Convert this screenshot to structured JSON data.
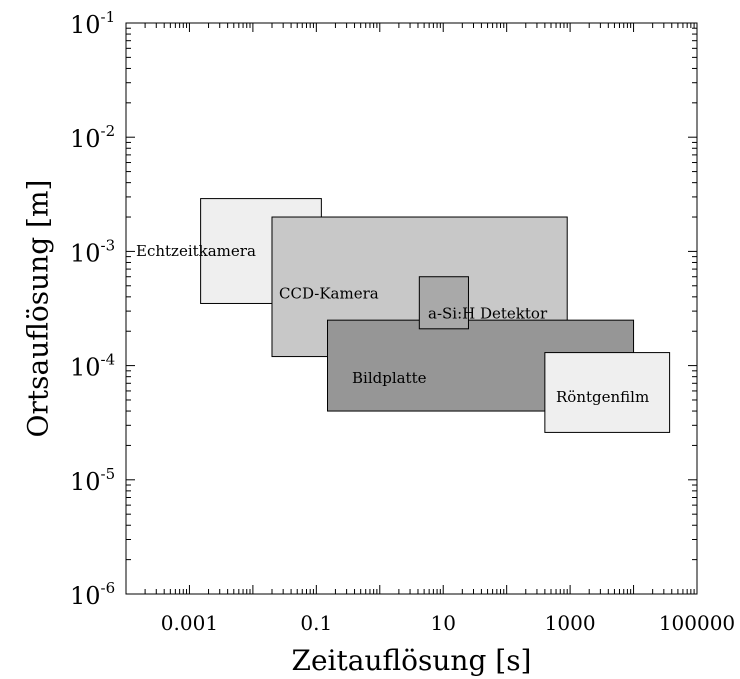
{
  "chart_data": {
    "type": "area",
    "xlabel": "Zeitauflösung [s]",
    "ylabel": "Ortsauflösung [m]",
    "x_scale": "log",
    "y_scale": "log",
    "xlim": [
      0.0001,
      100000
    ],
    "ylim": [
      1e-06,
      0.1
    ],
    "grid": false,
    "x_tick_labels": [
      "0.001",
      "0.1",
      "10",
      "1000",
      "100000"
    ],
    "x_tick_values": [
      0.001,
      0.1,
      10,
      1000,
      100000
    ],
    "y_tick_bases": [
      "10",
      "10",
      "10",
      "10",
      "10",
      "10"
    ],
    "y_tick_exps": [
      "-6",
      "-5",
      "-4",
      "-3",
      "-2",
      "-1"
    ],
    "y_tick_values": [
      1e-06,
      1e-05,
      0.0001,
      0.001,
      0.01,
      0.1
    ],
    "regions": [
      {
        "name": "Echtzeitkamera",
        "x": [
          0.0015,
          0.12
        ],
        "y": [
          0.00035,
          0.0029
        ],
        "color": "#efefef"
      },
      {
        "name": "CCD-Kamera",
        "x": [
          0.02,
          900
        ],
        "y": [
          0.00012,
          0.002
        ],
        "color": "#c8c8c8"
      },
      {
        "name": "Bildplatte",
        "x": [
          0.15,
          10000
        ],
        "y": [
          4e-05,
          0.00025
        ],
        "color": "#969696"
      },
      {
        "name": "a-Si:H Detektor",
        "x": [
          4.2,
          25
        ],
        "y": [
          0.00021,
          0.0006
        ],
        "color": "#a9a9a9"
      },
      {
        "name": "Röntgenfilm",
        "x": [
          400,
          37000
        ],
        "y": [
          2.6e-05,
          0.00013
        ],
        "color": "#efefef"
      }
    ]
  }
}
